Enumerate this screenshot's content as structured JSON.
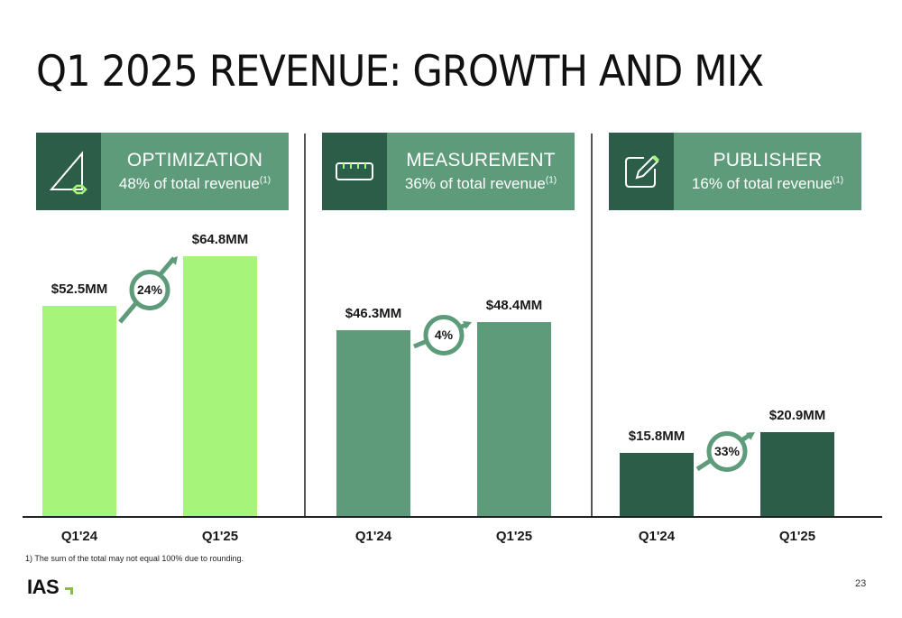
{
  "title": "Q1 2025 REVENUE: GROWTH AND MIX",
  "colors": {
    "optimization": "#a6f57a",
    "measurement": "#5e9b7a",
    "publisher": "#2c5d48",
    "header_dark": "#2c5d48",
    "header_light": "#5e9b7a",
    "growth_ring": "#5e9b7a"
  },
  "panels": [
    {
      "name": "OPTIMIZATION",
      "subtitle": "48% of total revenue",
      "footnote_ref": "(1)",
      "icon": "triangle-gear-icon"
    },
    {
      "name": "MEASUREMENT",
      "subtitle": "36% of total revenue",
      "footnote_ref": "(1)",
      "icon": "ruler-icon"
    },
    {
      "name": "PUBLISHER",
      "subtitle": "16% of total revenue",
      "footnote_ref": "(1)",
      "icon": "edit-pencil-icon"
    }
  ],
  "chart_data": [
    {
      "type": "bar",
      "title": "OPTIMIZATION",
      "categories": [
        "Q1'24",
        "Q1'25"
      ],
      "values": [
        52.5,
        64.8
      ],
      "data_labels": [
        "$52.5MM",
        "$64.8MM"
      ],
      "growth": "24%",
      "unit": "$MM",
      "ylim": [
        0,
        75
      ]
    },
    {
      "type": "bar",
      "title": "MEASUREMENT",
      "categories": [
        "Q1'24",
        "Q1'25"
      ],
      "values": [
        46.3,
        48.4
      ],
      "data_labels": [
        "$46.3MM",
        "$48.4MM"
      ],
      "growth": "4%",
      "unit": "$MM",
      "ylim": [
        0,
        75
      ]
    },
    {
      "type": "bar",
      "title": "PUBLISHER",
      "categories": [
        "Q1'24",
        "Q1'25"
      ],
      "values": [
        15.8,
        20.9
      ],
      "data_labels": [
        "$15.8MM",
        "$20.9MM"
      ],
      "growth": "33%",
      "unit": "$MM",
      "ylim": [
        0,
        75
      ]
    }
  ],
  "footnote": "1) The sum of the total may not equal 100% due to rounding.",
  "logo_text": "IAS",
  "page_number": "23"
}
